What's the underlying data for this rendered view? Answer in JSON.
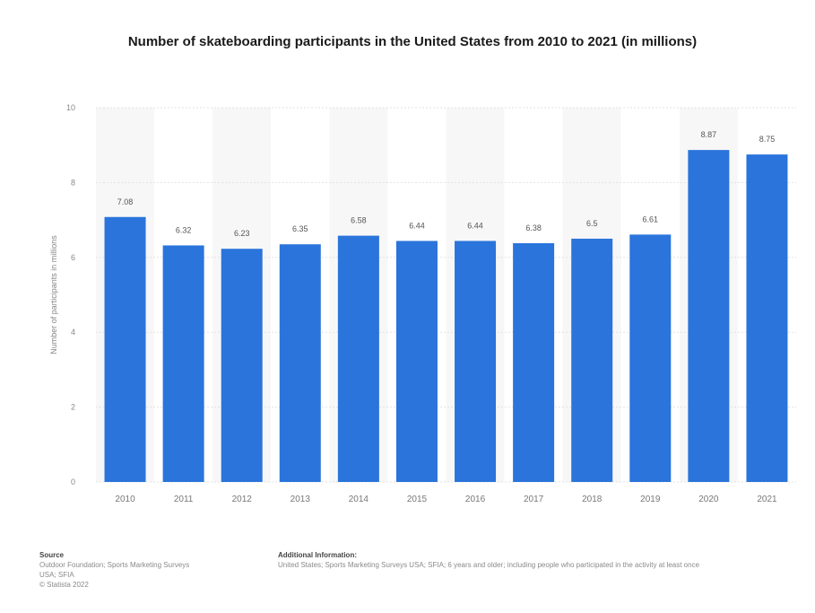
{
  "chart_data": {
    "type": "bar",
    "title": "Number of skateboarding participants in the United States from 2010 to 2021 (in millions)",
    "ylabel": "Number of participants in millions",
    "xlabel": "",
    "categories": [
      "2010",
      "2011",
      "2012",
      "2013",
      "2014",
      "2015",
      "2016",
      "2017",
      "2018",
      "2019",
      "2020",
      "2021"
    ],
    "values": [
      7.08,
      6.32,
      6.23,
      6.35,
      6.58,
      6.44,
      6.44,
      6.38,
      6.5,
      6.61,
      8.87,
      8.75
    ],
    "value_labels": [
      "7.08",
      "6.32",
      "6.23",
      "6.35",
      "6.58",
      "6.44",
      "6.44",
      "6.38",
      "6.5",
      "6.61",
      "8.87",
      "8.75"
    ],
    "ylim": [
      0,
      10
    ],
    "yticks": [
      "0",
      "2",
      "4",
      "6",
      "8",
      "10"
    ],
    "grid": true,
    "bar_color": "#2a74db"
  },
  "footer": {
    "source_heading": "Source",
    "source_lines": [
      "Outdoor Foundation; Sports Marketing Surveys",
      "USA; SFIA",
      "© Statista 2022"
    ],
    "info_heading": "Additional Information:",
    "info_text": "United States; Sports Marketing Surveys USA; SFIA; 6 years and older; including people who participated in the activity at least once"
  }
}
